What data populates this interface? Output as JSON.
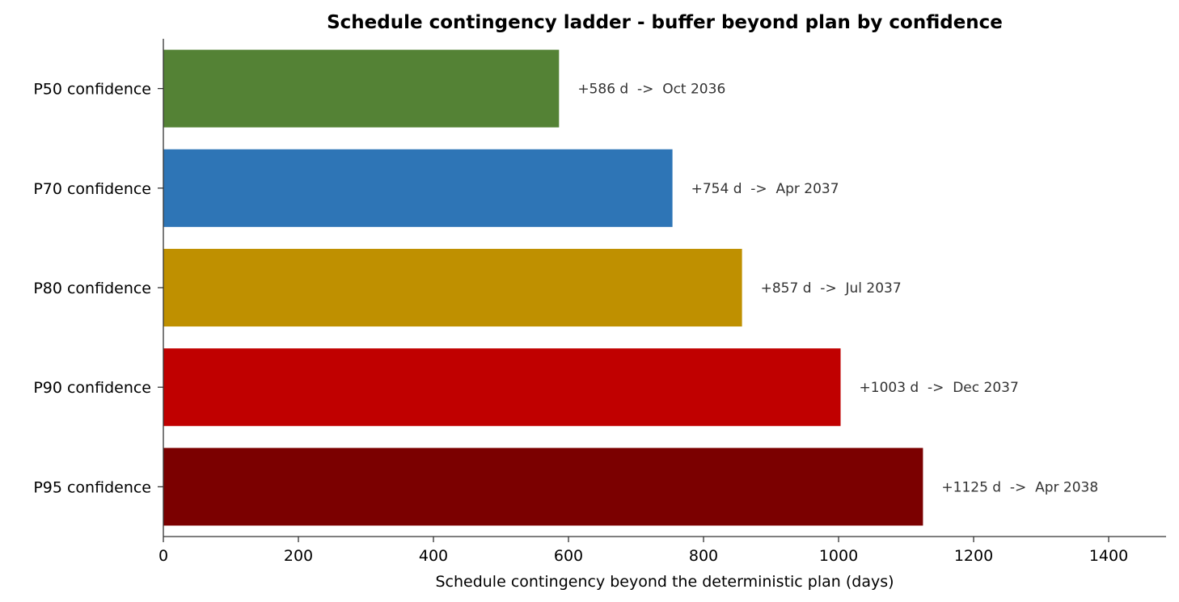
{
  "chart_data": {
    "type": "bar",
    "orientation": "horizontal",
    "title": "Schedule contingency ladder - buffer beyond plan by confidence",
    "xlabel": "Schedule contingency beyond the deterministic plan  (days)",
    "ylabel": "",
    "xlim": [
      0,
      1485
    ],
    "x_ticks": [
      0,
      200,
      400,
      600,
      800,
      1000,
      1200,
      1400
    ],
    "x_tick_labels": [
      "0",
      "200",
      "400",
      "600",
      "800",
      "1000",
      "1200",
      "1400"
    ],
    "grid": false,
    "legend": "none",
    "categories": [
      "P50 confidence",
      "P70 confidence",
      "P80 confidence",
      "P90 confidence",
      "P95 confidence"
    ],
    "values": [
      586,
      754,
      857,
      1003,
      1125
    ],
    "colors": [
      "#548235",
      "#2e75b6",
      "#bf9000",
      "#c00000",
      "#7b0000"
    ],
    "data_labels": [
      "+586 d  ->  Oct 2036",
      "+754 d  ->  Apr 2037",
      "+857 d  ->  Jul 2037",
      "+1003 d  ->  Dec 2037",
      "+1125 d  ->  Apr 2038"
    ]
  }
}
